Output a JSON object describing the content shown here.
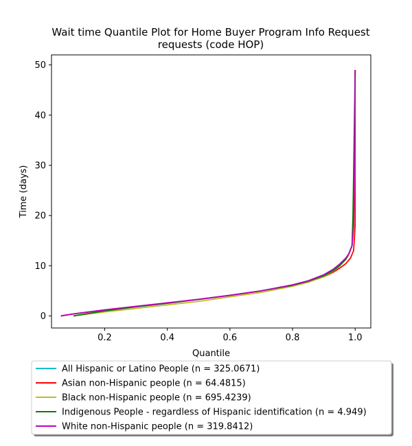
{
  "chart_data": {
    "type": "line",
    "title_line1": "Wait time Quantile Plot for Home Buyer Program Info Request",
    "title_line2": "requests (code HOP)",
    "xlabel": "Quantile",
    "ylabel": "Time (days)",
    "xlim": [
      0.03,
      1.05
    ],
    "ylim": [
      -2.4,
      52
    ],
    "x_ticks": [
      0.2,
      0.4,
      0.6,
      0.8,
      1.0
    ],
    "x_tick_labels": [
      "0.2",
      "0.4",
      "0.6",
      "0.8",
      "1.0"
    ],
    "y_ticks": [
      0,
      10,
      20,
      30,
      40,
      50
    ],
    "y_tick_labels": [
      "0",
      "10",
      "20",
      "30",
      "40",
      "50"
    ],
    "grid": false,
    "legend_position": "below",
    "series": [
      {
        "name": "All Hispanic or Latino People (n = 325.0671)",
        "color": "#17becf",
        "x": [
          0.06,
          0.1,
          0.2,
          0.3,
          0.4,
          0.5,
          0.6,
          0.7,
          0.8,
          0.85,
          0.9,
          0.93,
          0.95,
          0.97,
          0.98,
          0.99,
          0.995,
          0.998,
          1.0
        ],
        "y": [
          0,
          0.4,
          1.2,
          1.9,
          2.6,
          3.3,
          4.1,
          5.0,
          6.2,
          7.0,
          8.2,
          9.3,
          10.3,
          11.5,
          12.4,
          14,
          18,
          28,
          49
        ]
      },
      {
        "name": "Asian non-Hispanic people (n = 64.4815)",
        "color": "#ff0000",
        "x": [
          0.06,
          0.1,
          0.2,
          0.3,
          0.4,
          0.5,
          0.6,
          0.7,
          0.8,
          0.85,
          0.9,
          0.93,
          0.95,
          0.97,
          0.985,
          0.995,
          1.0,
          1.0
        ],
        "y": [
          0,
          0.4,
          1.2,
          1.9,
          2.6,
          3.3,
          4.1,
          5.0,
          6.1,
          6.8,
          7.8,
          8.7,
          9.5,
          10.4,
          11.5,
          13,
          18,
          49
        ]
      },
      {
        "name": "Black non-Hispanic people (n = 695.4239)",
        "color": "#bcbd22",
        "x": [
          0.1,
          0.2,
          0.3,
          0.4,
          0.5,
          0.6,
          0.7,
          0.8,
          0.85,
          0.9,
          0.93,
          0.95,
          0.97,
          0.98,
          0.99,
          0.995,
          0.998,
          1.0
        ],
        "y": [
          0,
          0.8,
          1.5,
          2.2,
          2.9,
          3.8,
          4.7,
          5.9,
          6.7,
          7.8,
          8.9,
          9.9,
          11.2,
          12.2,
          14,
          18,
          28,
          49
        ]
      },
      {
        "name": "Indigenous People - regardless of Hispanic identification (n = 4.949)",
        "color": "#008000",
        "x": [
          0.1,
          0.15,
          0.2,
          0.3,
          0.4,
          0.5,
          0.6,
          0.7,
          0.8,
          0.85,
          0.9,
          0.93,
          0.95,
          0.97,
          0.98,
          0.99,
          0.993,
          0.995,
          1.0
        ],
        "y": [
          0,
          0.5,
          1.0,
          1.8,
          2.5,
          3.3,
          4.1,
          5.0,
          6.1,
          6.9,
          8.0,
          9.0,
          10.0,
          11.3,
          12.4,
          14,
          20,
          28,
          49
        ]
      },
      {
        "name": "White non-Hispanic people (n = 319.8412)",
        "color": "#c000c0",
        "x": [
          0.06,
          0.1,
          0.2,
          0.3,
          0.4,
          0.5,
          0.6,
          0.7,
          0.8,
          0.85,
          0.9,
          0.93,
          0.95,
          0.97,
          0.98,
          0.99,
          0.995,
          0.998,
          1.0
        ],
        "y": [
          0,
          0.4,
          1.2,
          1.9,
          2.6,
          3.3,
          4.1,
          5.0,
          6.2,
          7.0,
          8.2,
          9.3,
          10.3,
          11.5,
          12.4,
          14,
          18,
          30,
          49
        ]
      }
    ]
  }
}
